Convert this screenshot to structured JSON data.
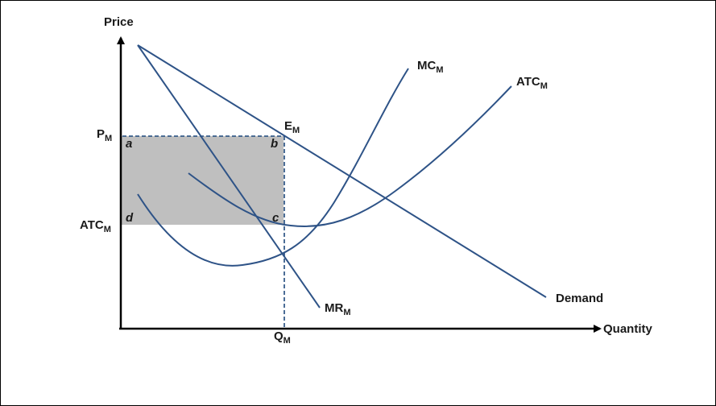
{
  "axes": {
    "y_label": "Price",
    "x_label": "Quantity"
  },
  "curves": {
    "mc": {
      "base": "MC",
      "sub": "M"
    },
    "atc": {
      "base": "ATC",
      "sub": "M"
    },
    "mr": {
      "base": "MR",
      "sub": "M"
    },
    "demand": "Demand"
  },
  "levels": {
    "price": {
      "base": "P",
      "sub": "M"
    },
    "avg_cost": {
      "base": "ATC",
      "sub": "M"
    },
    "quantity": {
      "base": "Q",
      "sub": "M"
    }
  },
  "equilibrium": {
    "base": "E",
    "sub": "M"
  },
  "points": {
    "a": "a",
    "b": "b",
    "c": "c",
    "d": "d"
  },
  "colors": {
    "curve": "#2e5387",
    "axis": "#000000",
    "shade": "#bfbfbf",
    "guide": "#1f497d"
  }
}
